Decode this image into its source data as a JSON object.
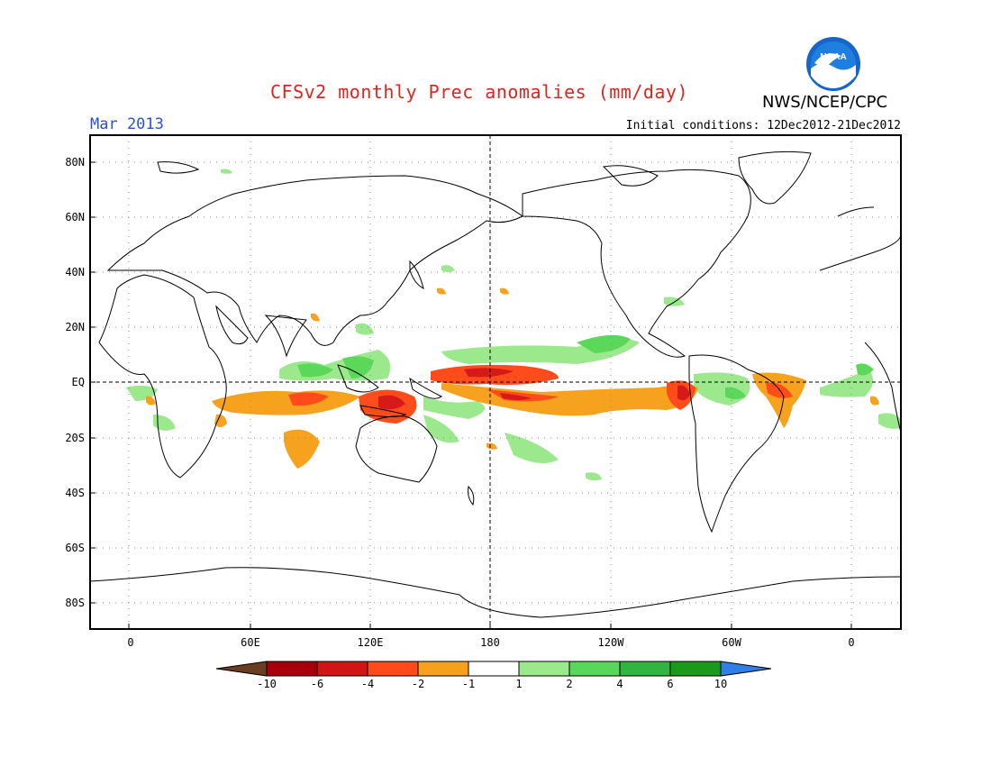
{
  "header": {
    "title": "CFSv2 monthly Prec anomalies (mm/day)",
    "org": "NWS/NCEP/CPC",
    "valid_month": "Mar 2013",
    "initial_conditions": "Initial conditions: 12Dec2012-21Dec2012"
  },
  "logo": {
    "text": "NOAA"
  },
  "colors": {
    "title": "#e0241c",
    "valid_month": "#2b4fd6",
    "wet_light": "#9be98c",
    "wet_mid": "#5bd75a",
    "wet_strong": "#32b53c",
    "dry_light": "#f7a21e",
    "dry_mid": "#ff4c1a",
    "dry_strong": "#d61a1a",
    "dry_extreme": "#b01010"
  },
  "axes": {
    "lat_labels": [
      "80N",
      "60N",
      "40N",
      "20N",
      "EQ",
      "20S",
      "40S",
      "60S",
      "80S"
    ],
    "lon_labels": [
      "0",
      "60E",
      "120E",
      "180",
      "120W",
      "60W",
      "0"
    ]
  },
  "colorbar": {
    "labels": [
      "-10",
      "-6",
      "-4",
      "-2",
      "-1",
      "1",
      "2",
      "4",
      "6",
      "10"
    ],
    "bins": [
      {
        "color": "#6a3c22"
      },
      {
        "color": "#a8000a"
      },
      {
        "color": "#d11414"
      },
      {
        "color": "#ff4a1a"
      },
      {
        "color": "#f7a01e"
      },
      {
        "color": "#ffffff"
      },
      {
        "color": "#9ae98a"
      },
      {
        "color": "#58d85a"
      },
      {
        "color": "#30b640"
      },
      {
        "color": "#1a9a1a"
      },
      {
        "color": "#2f7fe6"
      }
    ]
  }
}
